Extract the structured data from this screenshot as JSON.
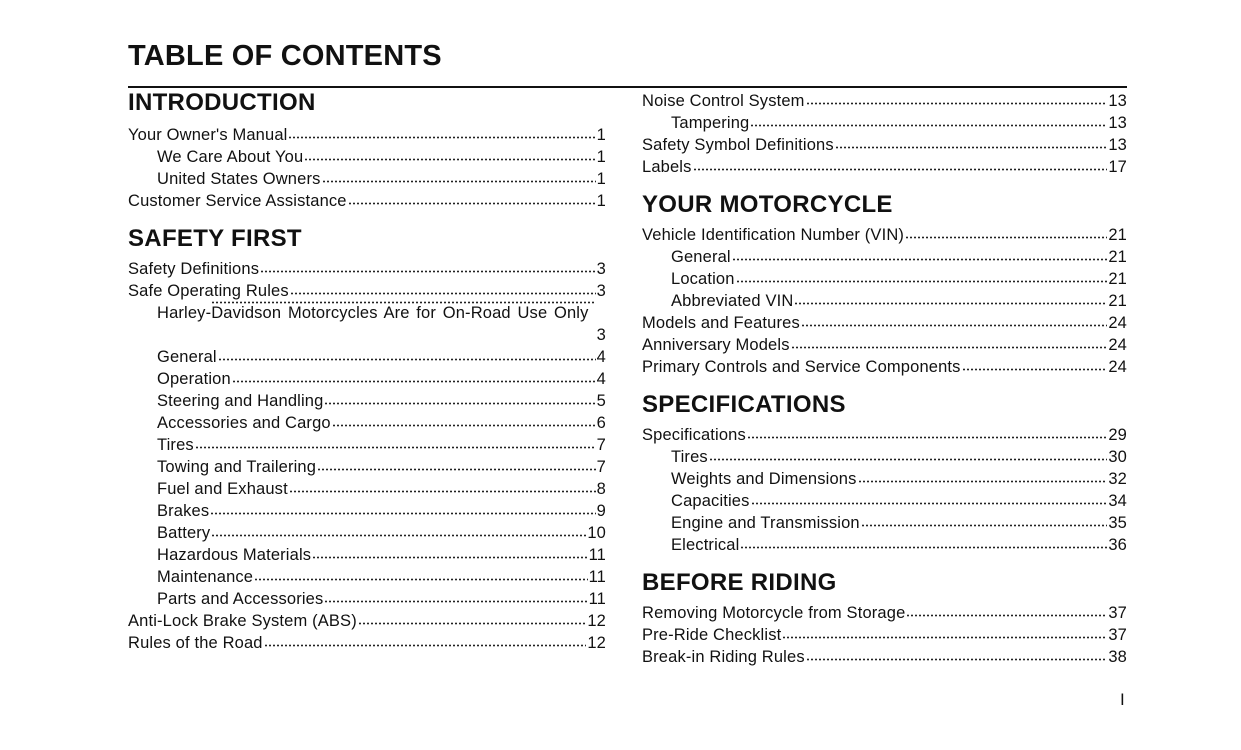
{
  "title": "TABLE OF CONTENTS",
  "page_number": "I",
  "columns": [
    [
      {
        "heading": "INTRODUCTION",
        "entries": [
          {
            "title": "Your Owner's Manual",
            "page": "1",
            "level": 0
          },
          {
            "title": "We Care About You",
            "page": "1",
            "level": 1
          },
          {
            "title": "United States Owners",
            "page": "1",
            "level": 1
          },
          {
            "title": "Customer Service Assistance",
            "page": "1",
            "level": 0
          }
        ]
      },
      {
        "heading": "SAFETY FIRST",
        "entries": [
          {
            "title": "Safety Definitions",
            "page": "3",
            "level": 0
          },
          {
            "title": "Safe Operating Rules",
            "page": "3",
            "level": 0
          },
          {
            "title": "Harley-Davidson Motorcycles Are for On-Road Use Only",
            "page": "3",
            "level": 1,
            "wrap": true
          },
          {
            "title": "General",
            "page": "4",
            "level": 1
          },
          {
            "title": "Operation",
            "page": "4",
            "level": 1
          },
          {
            "title": "Steering and Handling",
            "page": "5",
            "level": 1
          },
          {
            "title": "Accessories and Cargo",
            "page": "6",
            "level": 1
          },
          {
            "title": "Tires",
            "page": "7",
            "level": 1
          },
          {
            "title": "Towing and Trailering",
            "page": "7",
            "level": 1
          },
          {
            "title": "Fuel and Exhaust",
            "page": "8",
            "level": 1
          },
          {
            "title": "Brakes",
            "page": "9",
            "level": 1
          },
          {
            "title": "Battery",
            "page": "10",
            "level": 1
          },
          {
            "title": "Hazardous Materials",
            "page": "11",
            "level": 1
          },
          {
            "title": "Maintenance",
            "page": "11",
            "level": 1
          },
          {
            "title": "Parts and Accessories",
            "page": "11",
            "level": 1
          },
          {
            "title": "Anti-Lock Brake System (ABS)",
            "page": "12",
            "level": 0
          },
          {
            "title": "Rules of the Road",
            "page": "12",
            "level": 0
          }
        ]
      }
    ],
    [
      {
        "heading": "",
        "entries": [
          {
            "title": "Noise Control System",
            "page": "13",
            "level": 0
          },
          {
            "title": "Tampering",
            "page": "13",
            "level": 1
          },
          {
            "title": "Safety Symbol Definitions",
            "page": "13",
            "level": 0
          },
          {
            "title": "Labels",
            "page": "17",
            "level": 0
          }
        ]
      },
      {
        "heading": "YOUR MOTORCYCLE",
        "entries": [
          {
            "title": "Vehicle Identification Number (VIN)",
            "page": "21",
            "level": 0
          },
          {
            "title": "General",
            "page": "21",
            "level": 1
          },
          {
            "title": "Location",
            "page": "21",
            "level": 1
          },
          {
            "title": "Abbreviated VIN",
            "page": "21",
            "level": 1
          },
          {
            "title": "Models and Features",
            "page": "24",
            "level": 0
          },
          {
            "title": "Anniversary Models",
            "page": "24",
            "level": 0
          },
          {
            "title": "Primary Controls and Service Components",
            "page": "24",
            "level": 0
          }
        ]
      },
      {
        "heading": "SPECIFICATIONS",
        "entries": [
          {
            "title": "Specifications",
            "page": "29",
            "level": 0
          },
          {
            "title": "Tires",
            "page": "30",
            "level": 1
          },
          {
            "title": "Weights and Dimensions",
            "page": "32",
            "level": 1
          },
          {
            "title": "Capacities",
            "page": "34",
            "level": 1
          },
          {
            "title": "Engine and Transmission",
            "page": "35",
            "level": 1
          },
          {
            "title": "Electrical",
            "page": "36",
            "level": 1
          }
        ]
      },
      {
        "heading": "BEFORE RIDING",
        "entries": [
          {
            "title": "Removing Motorcycle from Storage",
            "page": "37",
            "level": 0
          },
          {
            "title": "Pre-Ride Checklist",
            "page": "37",
            "level": 0
          },
          {
            "title": "Break-in Riding Rules",
            "page": "38",
            "level": 0
          }
        ]
      }
    ]
  ]
}
